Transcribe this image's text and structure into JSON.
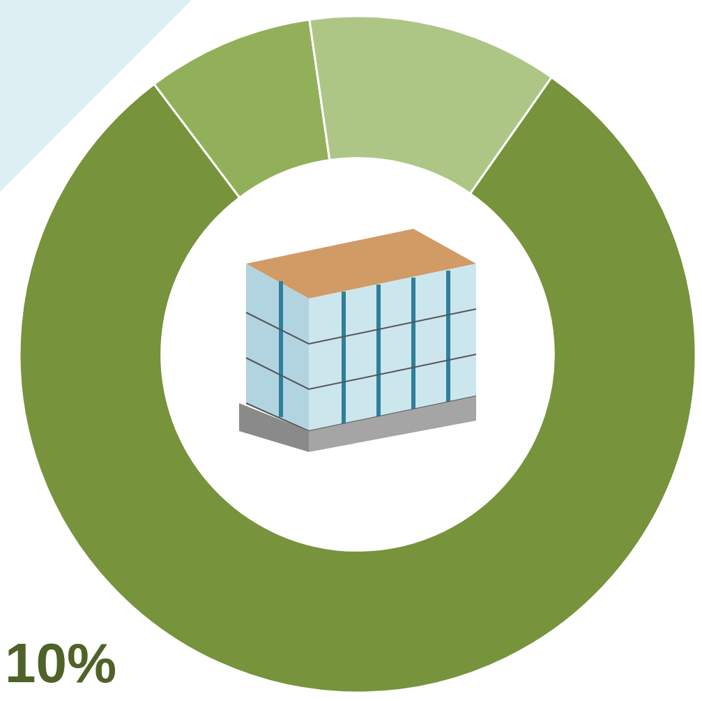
{
  "chart_data": {
    "type": "pie",
    "hole": true,
    "values": [
      80,
      8,
      12
    ],
    "colors": [
      "#77933c",
      "#92b05a",
      "#adc686"
    ],
    "annotations": [
      "10%"
    ],
    "legend": false
  }
}
